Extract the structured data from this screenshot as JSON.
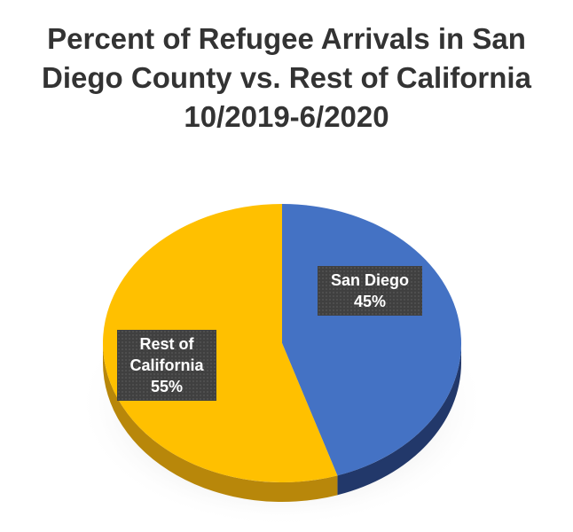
{
  "chart_data": {
    "type": "pie",
    "title_lines": [
      "Percent of Refugee Arrivals in San",
      "Diego County vs. Rest of California",
      "10/2019-6/2020"
    ],
    "slices": [
      {
        "label_lines": [
          "San Diego"
        ],
        "value": 45,
        "value_label": "45%",
        "color": "#4472C4",
        "side_color": "#22386a"
      },
      {
        "label_lines": [
          "Rest of",
          "California"
        ],
        "value": 55,
        "value_label": "55%",
        "color": "#FFC000",
        "side_color": "#b8870a"
      }
    ],
    "style": "3d-perspective",
    "start_angle_deg": 0,
    "direction": "clockwise"
  }
}
